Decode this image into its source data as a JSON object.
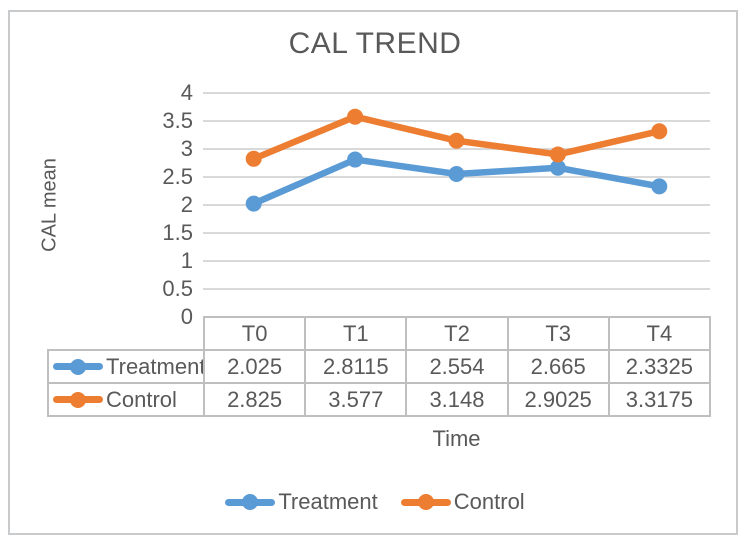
{
  "chart_data": {
    "type": "line",
    "title": "CAL TREND",
    "xlabel": "Time",
    "ylabel": "CAL mean",
    "categories": [
      "T0",
      "T1",
      "T2",
      "T3",
      "T4"
    ],
    "series": [
      {
        "name": "Treatment",
        "color": "#5B9BD5",
        "values": [
          2.025,
          2.8115,
          2.554,
          2.665,
          2.3325
        ]
      },
      {
        "name": "Control",
        "color": "#ED7D31",
        "values": [
          2.825,
          3.577,
          3.148,
          2.9025,
          3.3175
        ]
      }
    ],
    "ylim": [
      0,
      4
    ],
    "ytick_step": 0.5,
    "grid": true,
    "legend_position": "bottom",
    "legend_entries": [
      "Treatment",
      "Control"
    ],
    "data_table": true
  },
  "colors": {
    "treatment": "#5B9BD5",
    "control": "#ED7D31",
    "text": "#595959",
    "gridline": "#d9d9d9",
    "table_border": "#bfbfbf",
    "figure_border": "#c9cacb"
  }
}
